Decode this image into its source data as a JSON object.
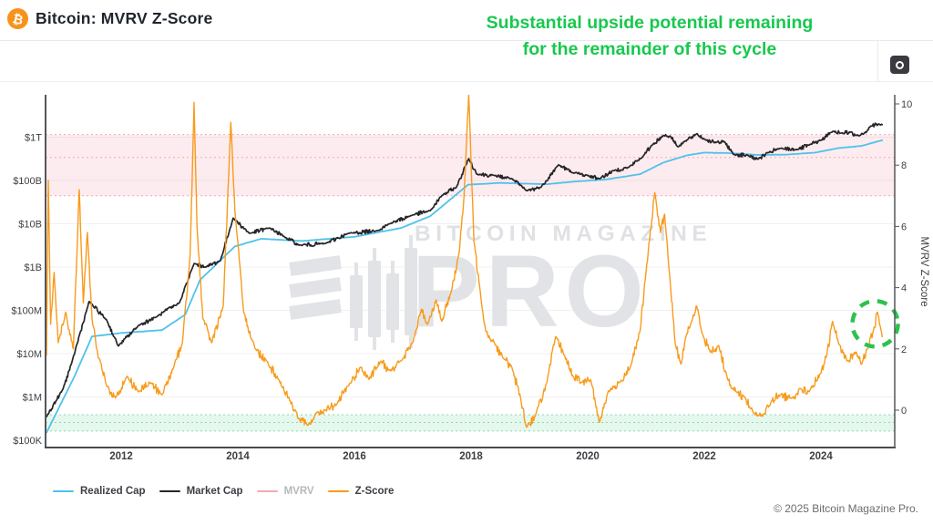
{
  "header": {
    "title": "Bitcoin: MVRV Z-Score",
    "bitcoin_symbol": "₿",
    "annotation_line1": "Substantial upside potential remaining",
    "annotation_line2": "for the remainder of this cycle",
    "annotation_color": "#18c84e"
  },
  "watermark": {
    "line1": "BITCOIN MAGAZINE",
    "line2": "PRO"
  },
  "footer": {
    "copyright": "© 2025 Bitcoin Magazine Pro."
  },
  "chart_data": {
    "type": "line",
    "title": "Bitcoin: MVRV Z-Score",
    "x_axis": {
      "range": [
        2010.7,
        2025.27
      ],
      "ticks": [
        2012,
        2014,
        2016,
        2018,
        2020,
        2022,
        2024
      ]
    },
    "left_axis": {
      "scale": "log",
      "range": [
        100000,
        1000000000000
      ],
      "ticks": [
        {
          "label": "$1T",
          "value": 1000000000000.0
        },
        {
          "label": "$100B",
          "value": 100000000000.0
        },
        {
          "label": "$10B",
          "value": 10000000000.0
        },
        {
          "label": "$1B",
          "value": 1000000000.0
        },
        {
          "label": "$100M",
          "value": 100000000.0
        },
        {
          "label": "$10M",
          "value": 10000000.0
        },
        {
          "label": "$1M",
          "value": 1000000.0
        },
        {
          "label": "$100K",
          "value": 100000.0
        }
      ]
    },
    "right_axis": {
      "label": "MVRV Z-Score",
      "range": [
        -1.2,
        10.3
      ],
      "ticks": [
        10,
        8,
        6,
        4,
        2,
        0
      ]
    },
    "zones": {
      "overvalued": {
        "from": 7,
        "to": 9,
        "fill": "rgba(242,122,142,0.14)",
        "dash_color": "#f2a9b4",
        "dash_lines": [
          9,
          8.25,
          7
        ]
      },
      "undervalued": {
        "from": -0.68,
        "to": -0.15,
        "fill": "rgba(96,210,140,0.16)",
        "dash_color": "#90d8ab",
        "dash_lines": [
          -0.15,
          -0.4,
          -0.68
        ]
      }
    },
    "annotation_circle": {
      "year": 2024.93,
      "z": 2.82,
      "radius_px": 25,
      "color": "#2cc24e"
    },
    "series": [
      {
        "name": "Realized Cap",
        "color": "#4fc2ea",
        "axis": "left",
        "hidden": false,
        "points": [
          [
            2010.72,
            150000
          ],
          [
            2011.2,
            3000000
          ],
          [
            2011.5,
            25000000
          ],
          [
            2012.0,
            30000000
          ],
          [
            2012.7,
            35000000
          ],
          [
            2013.1,
            80000000
          ],
          [
            2013.35,
            500000000
          ],
          [
            2013.95,
            3000000000
          ],
          [
            2014.4,
            4500000000
          ],
          [
            2015.1,
            4000000000
          ],
          [
            2016.0,
            5000000000
          ],
          [
            2016.8,
            8000000000
          ],
          [
            2017.3,
            15000000000
          ],
          [
            2017.95,
            80000000000
          ],
          [
            2018.5,
            88000000000
          ],
          [
            2019.3,
            82000000000
          ],
          [
            2019.8,
            95000000000
          ],
          [
            2020.3,
            105000000000
          ],
          [
            2020.9,
            140000000000
          ],
          [
            2021.3,
            260000000000
          ],
          [
            2021.7,
            380000000000
          ],
          [
            2022.0,
            440000000000
          ],
          [
            2022.4,
            430000000000
          ],
          [
            2022.9,
            390000000000
          ],
          [
            2023.4,
            395000000000
          ],
          [
            2023.9,
            440000000000
          ],
          [
            2024.3,
            560000000000
          ],
          [
            2024.7,
            630000000000
          ],
          [
            2025.05,
            850000000000
          ]
        ]
      },
      {
        "name": "Market Cap",
        "color": "#26262a",
        "axis": "left",
        "hidden": false,
        "points": [
          [
            2010.72,
            350000
          ],
          [
            2011.0,
            1500000
          ],
          [
            2011.15,
            6000000
          ],
          [
            2011.45,
            160000000
          ],
          [
            2011.75,
            60000000
          ],
          [
            2011.95,
            15000000
          ],
          [
            2012.3,
            45000000
          ],
          [
            2012.6,
            70000000
          ],
          [
            2013.0,
            150000000
          ],
          [
            2013.25,
            1200000000
          ],
          [
            2013.45,
            1000000000
          ],
          [
            2013.7,
            1400000000
          ],
          [
            2013.92,
            13500000000
          ],
          [
            2014.2,
            6000000000
          ],
          [
            2014.55,
            8000000000
          ],
          [
            2014.8,
            5000000000
          ],
          [
            2015.05,
            3200000000
          ],
          [
            2015.5,
            3500000000
          ],
          [
            2015.9,
            6000000000
          ],
          [
            2016.4,
            7000000000
          ],
          [
            2016.6,
            10000000000
          ],
          [
            2017.0,
            16000000000
          ],
          [
            2017.3,
            20000000000
          ],
          [
            2017.5,
            45000000000
          ],
          [
            2017.75,
            70000000000
          ],
          [
            2017.96,
            320000000000
          ],
          [
            2018.1,
            140000000000
          ],
          [
            2018.4,
            130000000000
          ],
          [
            2018.7,
            110000000000
          ],
          [
            2018.95,
            58000000000
          ],
          [
            2019.2,
            70000000000
          ],
          [
            2019.5,
            230000000000
          ],
          [
            2019.75,
            150000000000
          ],
          [
            2020.0,
            130000000000
          ],
          [
            2020.2,
            110000000000
          ],
          [
            2020.45,
            170000000000
          ],
          [
            2020.7,
            200000000000
          ],
          [
            2020.95,
            360000000000
          ],
          [
            2021.1,
            650000000000
          ],
          [
            2021.3,
            1100000000000
          ],
          [
            2021.42,
            1050000000000
          ],
          [
            2021.55,
            600000000000
          ],
          [
            2021.7,
            850000000000
          ],
          [
            2021.87,
            1200000000000
          ],
          [
            2022.0,
            900000000000
          ],
          [
            2022.2,
            750000000000
          ],
          [
            2022.35,
            780000000000
          ],
          [
            2022.5,
            400000000000
          ],
          [
            2022.75,
            380000000000
          ],
          [
            2022.92,
            310000000000
          ],
          [
            2023.1,
            440000000000
          ],
          [
            2023.3,
            550000000000
          ],
          [
            2023.6,
            520000000000
          ],
          [
            2023.8,
            660000000000
          ],
          [
            2024.0,
            850000000000
          ],
          [
            2024.2,
            1350000000000
          ],
          [
            2024.35,
            1250000000000
          ],
          [
            2024.5,
            1300000000000
          ],
          [
            2024.6,
            1100000000000
          ],
          [
            2024.75,
            1250000000000
          ],
          [
            2024.85,
            1800000000000
          ],
          [
            2025.0,
            2000000000000
          ],
          [
            2025.05,
            1950000000000
          ]
        ]
      },
      {
        "name": "MVRV",
        "color": "#f5a9b5",
        "axis": "right",
        "hidden": true,
        "points": []
      },
      {
        "name": "Z-Score",
        "color": "#f89b1c",
        "axis": "right",
        "hidden": false,
        "points": [
          [
            2010.72,
            1.8
          ],
          [
            2010.75,
            7.5
          ],
          [
            2010.79,
            2.8
          ],
          [
            2010.85,
            4.5
          ],
          [
            2010.92,
            2.2
          ],
          [
            2011.05,
            3.2
          ],
          [
            2011.18,
            2.0
          ],
          [
            2011.28,
            7.2
          ],
          [
            2011.35,
            3.5
          ],
          [
            2011.42,
            5.8
          ],
          [
            2011.5,
            3.0
          ],
          [
            2011.6,
            1.8
          ],
          [
            2011.75,
            0.8
          ],
          [
            2011.9,
            0.4
          ],
          [
            2012.1,
            1.1
          ],
          [
            2012.3,
            0.6
          ],
          [
            2012.5,
            0.9
          ],
          [
            2012.7,
            0.5
          ],
          [
            2012.9,
            1.4
          ],
          [
            2013.05,
            2.2
          ],
          [
            2013.18,
            5.0
          ],
          [
            2013.25,
            10.05
          ],
          [
            2013.3,
            6.0
          ],
          [
            2013.4,
            3.0
          ],
          [
            2013.55,
            2.2
          ],
          [
            2013.75,
            3.4
          ],
          [
            2013.88,
            9.4
          ],
          [
            2013.95,
            6.5
          ],
          [
            2014.1,
            3.2
          ],
          [
            2014.3,
            2.0
          ],
          [
            2014.5,
            1.6
          ],
          [
            2014.7,
            1.0
          ],
          [
            2014.9,
            0.3
          ],
          [
            2015.05,
            -0.3
          ],
          [
            2015.2,
            -0.5
          ],
          [
            2015.35,
            -0.1
          ],
          [
            2015.5,
            0.0
          ],
          [
            2015.7,
            0.2
          ],
          [
            2015.9,
            0.8
          ],
          [
            2016.1,
            1.4
          ],
          [
            2016.25,
            1.0
          ],
          [
            2016.45,
            1.6
          ],
          [
            2016.6,
            1.3
          ],
          [
            2016.8,
            1.6
          ],
          [
            2017.0,
            2.2
          ],
          [
            2017.15,
            3.3
          ],
          [
            2017.25,
            2.8
          ],
          [
            2017.4,
            3.6
          ],
          [
            2017.5,
            2.9
          ],
          [
            2017.65,
            3.8
          ],
          [
            2017.8,
            5.2
          ],
          [
            2017.88,
            7.0
          ],
          [
            2017.96,
            10.3
          ],
          [
            2018.05,
            5.5
          ],
          [
            2018.15,
            4.0
          ],
          [
            2018.25,
            2.6
          ],
          [
            2018.4,
            2.2
          ],
          [
            2018.55,
            1.7
          ],
          [
            2018.7,
            1.4
          ],
          [
            2018.85,
            0.4
          ],
          [
            2018.95,
            -0.55
          ],
          [
            2019.1,
            -0.2
          ],
          [
            2019.3,
            0.9
          ],
          [
            2019.45,
            2.4
          ],
          [
            2019.6,
            1.8
          ],
          [
            2019.75,
            1.1
          ],
          [
            2019.9,
            0.9
          ],
          [
            2020.05,
            1.0
          ],
          [
            2020.2,
            -0.4
          ],
          [
            2020.35,
            0.6
          ],
          [
            2020.55,
            0.9
          ],
          [
            2020.75,
            1.5
          ],
          [
            2020.9,
            2.6
          ],
          [
            2021.0,
            4.5
          ],
          [
            2021.1,
            6.2
          ],
          [
            2021.15,
            7.1
          ],
          [
            2021.25,
            5.8
          ],
          [
            2021.32,
            6.4
          ],
          [
            2021.4,
            4.5
          ],
          [
            2021.5,
            2.2
          ],
          [
            2021.6,
            1.5
          ],
          [
            2021.7,
            2.5
          ],
          [
            2021.8,
            3.0
          ],
          [
            2021.87,
            3.4
          ],
          [
            2021.95,
            2.6
          ],
          [
            2022.1,
            1.9
          ],
          [
            2022.25,
            2.1
          ],
          [
            2022.4,
            1.0
          ],
          [
            2022.55,
            0.6
          ],
          [
            2022.7,
            0.4
          ],
          [
            2022.85,
            -0.1
          ],
          [
            2023.0,
            -0.2
          ],
          [
            2023.15,
            0.3
          ],
          [
            2023.3,
            0.5
          ],
          [
            2023.5,
            0.4
          ],
          [
            2023.65,
            0.7
          ],
          [
            2023.8,
            0.6
          ],
          [
            2024.0,
            1.2
          ],
          [
            2024.1,
            1.8
          ],
          [
            2024.2,
            2.9
          ],
          [
            2024.3,
            2.2
          ],
          [
            2024.45,
            1.6
          ],
          [
            2024.6,
            1.9
          ],
          [
            2024.7,
            1.5
          ],
          [
            2024.8,
            2.0
          ],
          [
            2024.9,
            2.6
          ],
          [
            2024.97,
            3.2
          ],
          [
            2025.05,
            2.4
          ]
        ]
      }
    ]
  }
}
